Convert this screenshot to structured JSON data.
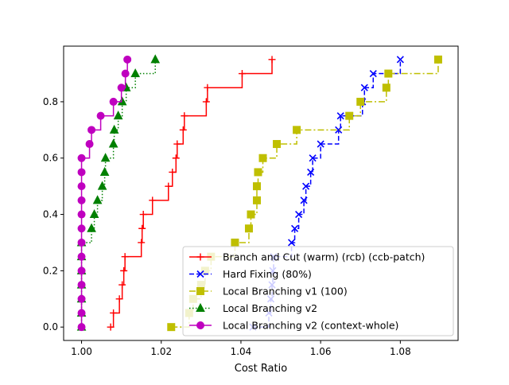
{
  "chart_data": {
    "type": "line",
    "xlabel": "Cost Ratio",
    "ylabel": "",
    "xlim": [
      0.9955,
      1.0945
    ],
    "ylim": [
      -0.0475,
      0.9975
    ],
    "x_ticks": [
      1.0,
      1.02,
      1.04,
      1.06,
      1.08
    ],
    "x_tick_labels": [
      "1.00",
      "1.02",
      "1.04",
      "1.06",
      "1.08"
    ],
    "y_ticks": [
      0.0,
      0.2,
      0.4,
      0.6,
      0.8
    ],
    "y_tick_labels": [
      "0.0",
      "0.2",
      "0.4",
      "0.6",
      "0.8"
    ],
    "grid": false,
    "legend_position": "lower-right",
    "series": [
      {
        "name": "Branch and Cut (warm) (rcb) (ccb-patch)",
        "color": "#ff0000",
        "linestyle": "solid",
        "marker": "plus",
        "x": [
          1.0073,
          1.008,
          1.0095,
          1.0102,
          1.0106,
          1.0109,
          1.015,
          1.0152,
          1.0155,
          1.0178,
          1.0218,
          1.0228,
          1.0237,
          1.024,
          1.0255,
          1.0258,
          1.0313,
          1.0316,
          1.0403,
          1.0478
        ],
        "y": [
          0.0,
          0.05,
          0.1,
          0.15,
          0.2,
          0.25,
          0.3,
          0.35,
          0.4,
          0.45,
          0.5,
          0.55,
          0.6,
          0.65,
          0.7,
          0.75,
          0.8,
          0.85,
          0.9,
          0.95
        ]
      },
      {
        "name": "Hard Fixing (80%)",
        "color": "#0000ff",
        "linestyle": "dashed",
        "marker": "x",
        "x": [
          1.043,
          1.047,
          1.0475,
          1.0478,
          1.048,
          1.0482,
          1.0527,
          1.0535,
          1.0545,
          1.0558,
          1.0563,
          1.0575,
          1.058,
          1.06,
          1.0645,
          1.065,
          1.0705,
          1.071,
          1.0732,
          1.08
        ],
        "y": [
          0.0,
          0.05,
          0.1,
          0.15,
          0.2,
          0.25,
          0.3,
          0.35,
          0.4,
          0.45,
          0.5,
          0.55,
          0.6,
          0.65,
          0.7,
          0.75,
          0.8,
          0.85,
          0.9,
          0.95
        ]
      },
      {
        "name": "Local Branching v1 (100)",
        "color": "#bfbf00",
        "linestyle": "dashdot",
        "marker": "square",
        "x": [
          1.0225,
          1.027,
          1.028,
          1.03,
          1.031,
          1.0325,
          1.0385,
          1.042,
          1.0425,
          1.044,
          1.044,
          1.0443,
          1.0455,
          1.049,
          1.054,
          1.0672,
          1.07,
          1.0765,
          1.077,
          1.0895
        ],
        "y": [
          0.0,
          0.05,
          0.1,
          0.15,
          0.2,
          0.25,
          0.3,
          0.35,
          0.4,
          0.45,
          0.5,
          0.55,
          0.6,
          0.65,
          0.7,
          0.75,
          0.8,
          0.85,
          0.9,
          0.95
        ]
      },
      {
        "name": "Local Branching v2",
        "color": "#008000",
        "linestyle": "dotted",
        "marker": "triangle",
        "x": [
          1.0,
          1.0,
          1.0,
          1.0,
          1.0,
          1.0,
          1.0,
          1.0025,
          1.0032,
          1.004,
          1.0052,
          1.0058,
          1.006,
          1.008,
          1.0082,
          1.0092,
          1.0102,
          1.0112,
          1.0135,
          1.0185
        ],
        "y": [
          0.0,
          0.05,
          0.1,
          0.15,
          0.2,
          0.25,
          0.3,
          0.35,
          0.4,
          0.45,
          0.5,
          0.55,
          0.6,
          0.65,
          0.7,
          0.75,
          0.8,
          0.85,
          0.9,
          0.95
        ]
      },
      {
        "name": "Local Branching v2 (context-whole)",
        "color": "#bf00bf",
        "linestyle": "solid",
        "marker": "circle",
        "x": [
          1.0,
          1.0,
          1.0,
          1.0,
          1.0,
          1.0,
          1.0,
          1.0,
          1.0,
          1.0,
          1.0,
          1.0,
          1.0,
          1.002,
          1.0025,
          1.0048,
          1.008,
          1.01,
          1.011,
          1.0115
        ],
        "y": [
          0.0,
          0.05,
          0.1,
          0.15,
          0.2,
          0.25,
          0.3,
          0.35,
          0.4,
          0.45,
          0.5,
          0.55,
          0.6,
          0.65,
          0.7,
          0.75,
          0.8,
          0.85,
          0.9,
          0.95
        ]
      }
    ]
  }
}
